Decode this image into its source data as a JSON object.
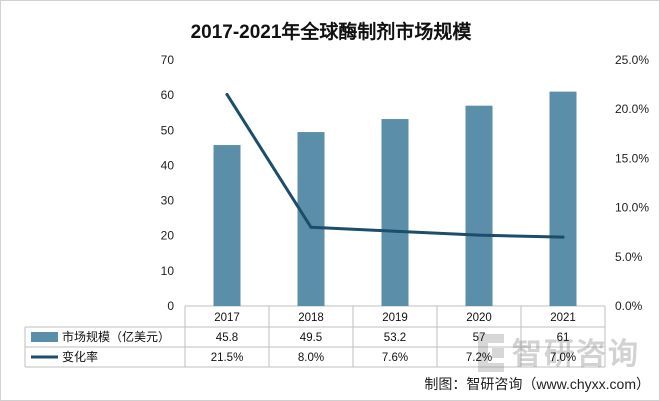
{
  "chart_data": {
    "type": "bar",
    "title": "2017-2021年全球酶制剂市场规模",
    "categories": [
      "2017",
      "2018",
      "2019",
      "2020",
      "2021"
    ],
    "series": [
      {
        "name": "市场规模（亿美元）",
        "type": "bar",
        "axis": "left",
        "color": "#5b8ea8",
        "values": [
          45.8,
          49.5,
          53.2,
          57,
          61
        ],
        "labels": [
          "45.8",
          "49.5",
          "53.2",
          "57",
          "61"
        ]
      },
      {
        "name": "变化率",
        "type": "line",
        "axis": "right",
        "color": "#1c4d6b",
        "values": [
          21.5,
          8.0,
          7.6,
          7.2,
          7.0
        ],
        "labels": [
          "21.5%",
          "8.0%",
          "7.6%",
          "7.2%",
          "7.0%"
        ]
      }
    ],
    "y_left": {
      "ylim": [
        0,
        70
      ],
      "ticks": [
        0,
        10,
        20,
        30,
        40,
        50,
        60,
        70
      ],
      "tick_labels": [
        "0",
        "10",
        "20",
        "30",
        "40",
        "50",
        "60",
        "70"
      ]
    },
    "y_right": {
      "ylim": [
        0,
        25
      ],
      "ticks": [
        0,
        5,
        10,
        15,
        20,
        25
      ],
      "tick_labels": [
        "0.0%",
        "5.0%",
        "10.0%",
        "15.0%",
        "20.0%",
        "25.0%"
      ]
    },
    "grid": false,
    "legend": "bottom-data-table"
  },
  "source": "制图：智研咨询（www.chyxx.com）",
  "watermark": {
    "text": "智研咨询"
  },
  "colors": {
    "table_border": "#bfbfbf",
    "frame": "#d0d0d0",
    "watermark": "#8c8c8c"
  }
}
